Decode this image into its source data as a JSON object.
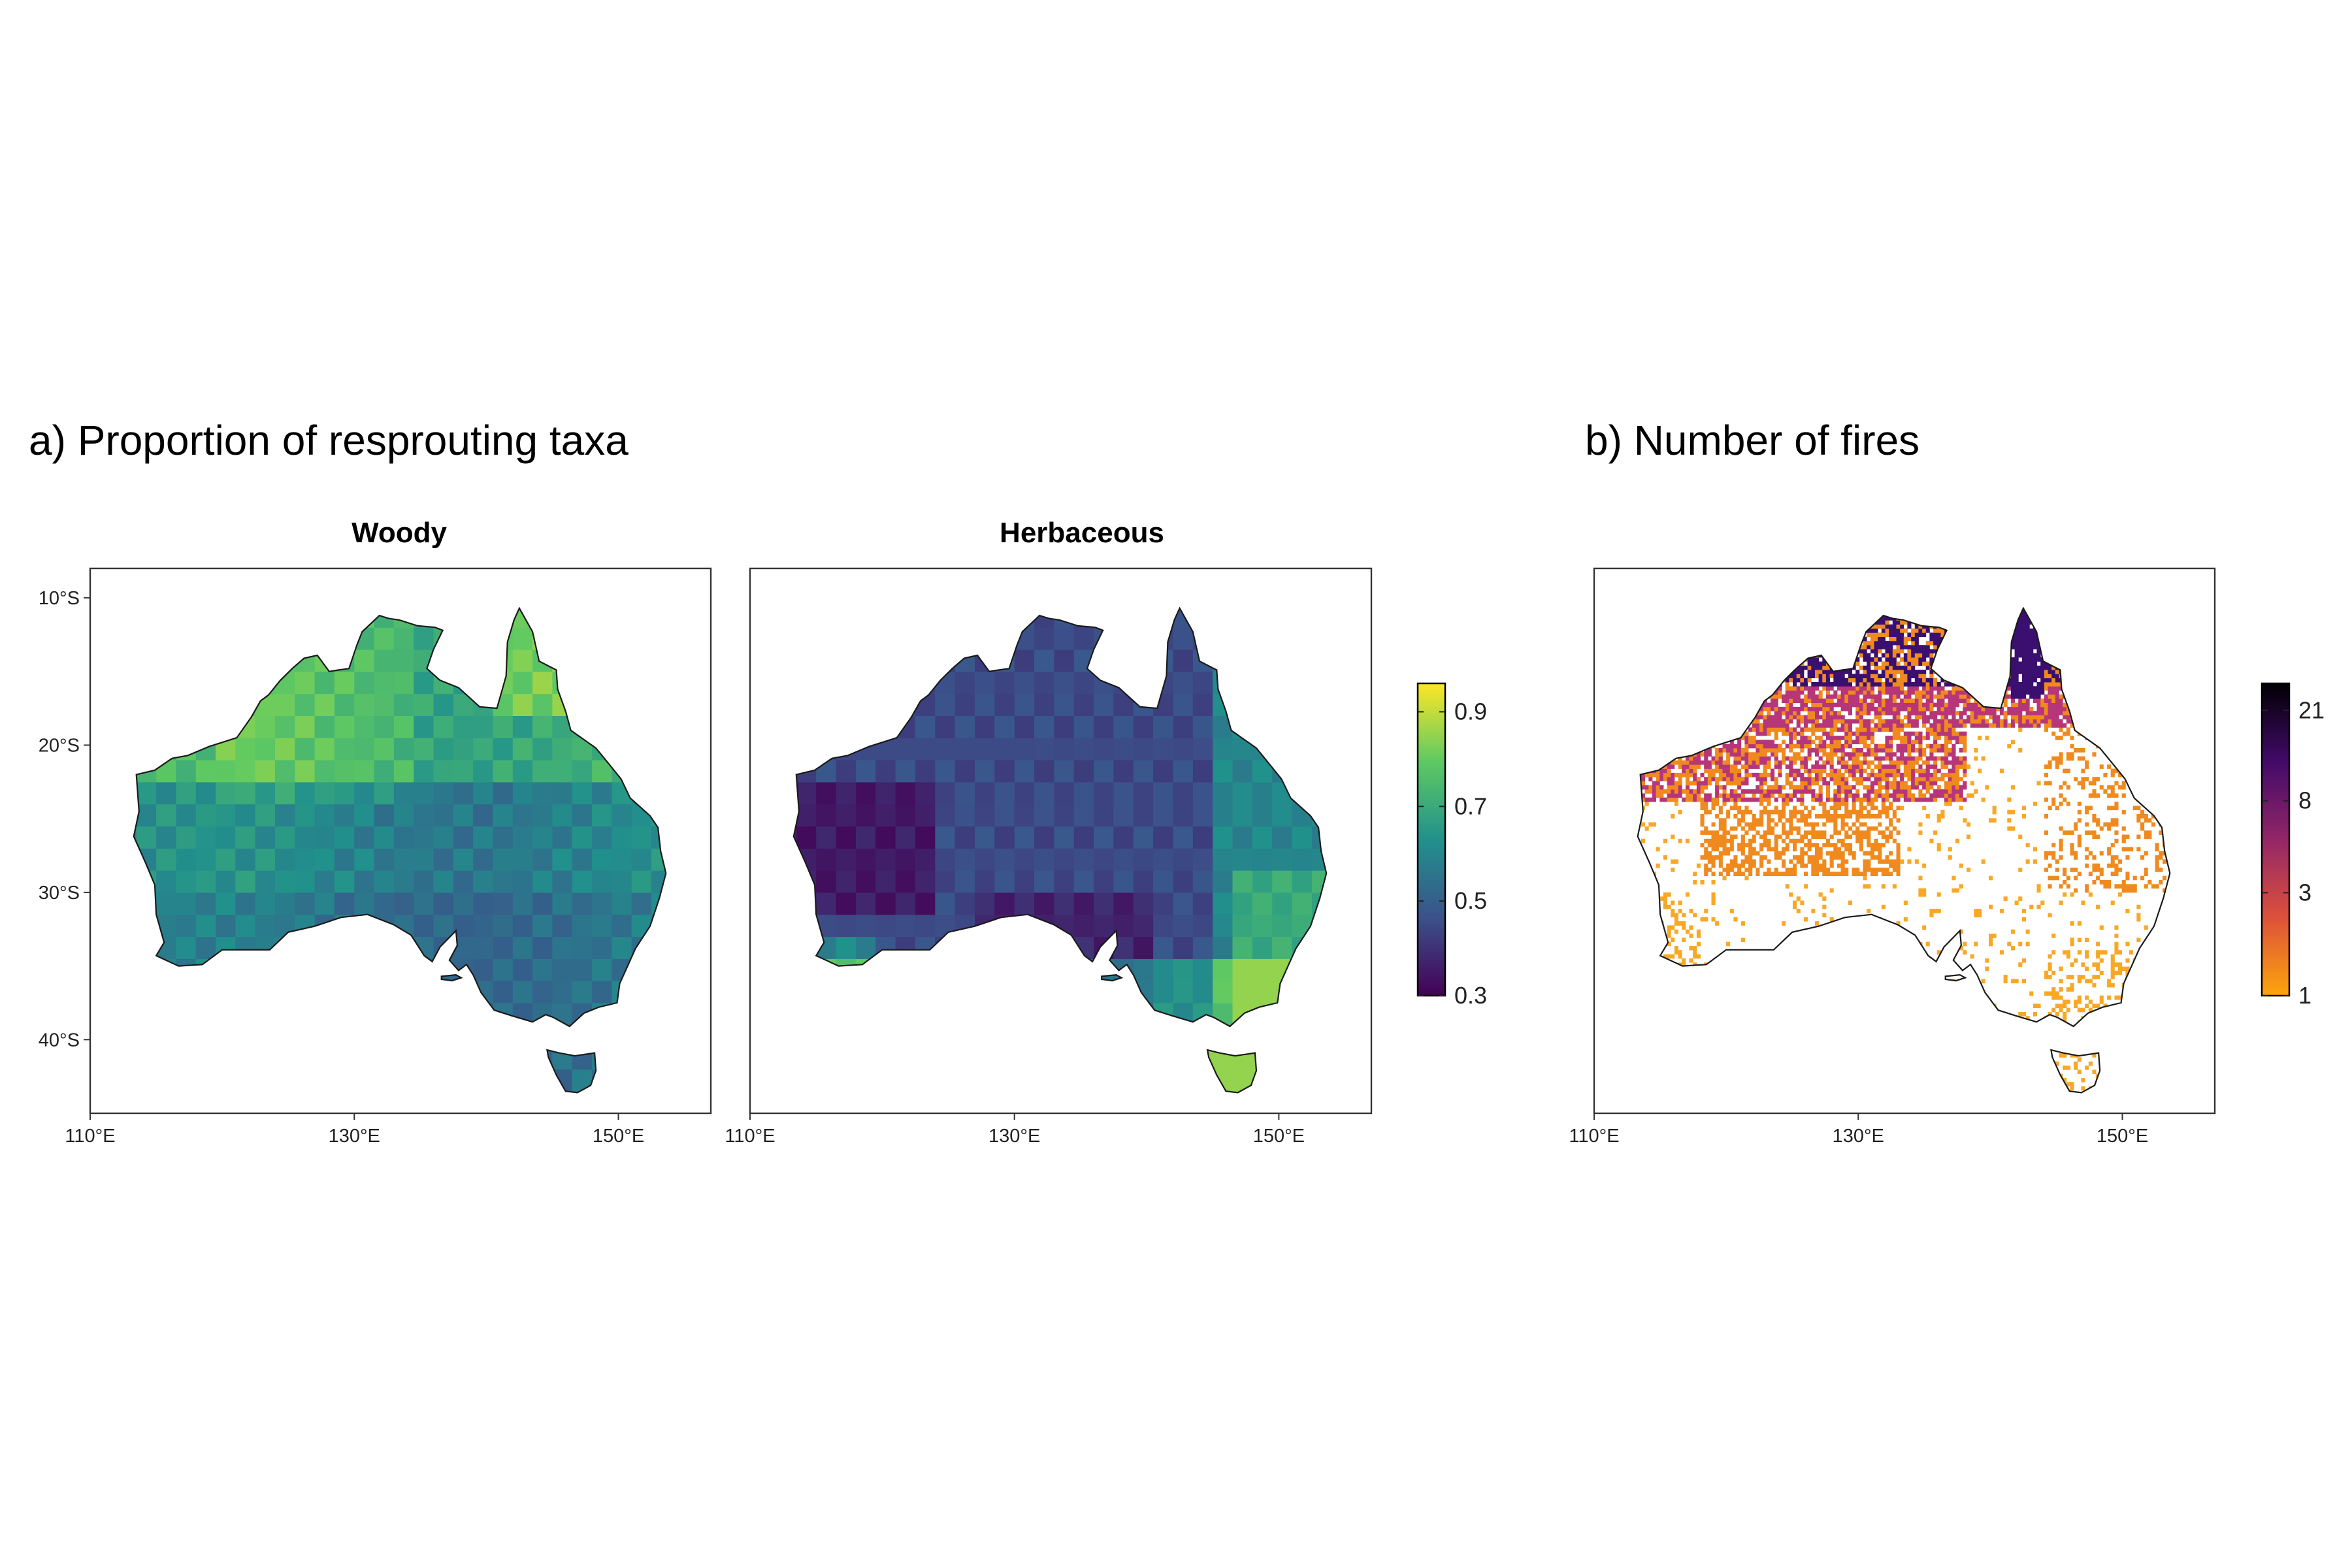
{
  "panel_a": {
    "title": "a) Proportion of resprouting taxa",
    "facets": [
      {
        "id": "woody",
        "label": "Woody",
        "gradient": [
          "#31688e",
          "#26828e",
          "#1f9e89",
          "#35b779",
          "#6ece58",
          "#b5de2b"
        ]
      },
      {
        "id": "herbaceous",
        "label": "Herbaceous",
        "gradient": [
          "#440154",
          "#46337e",
          "#365c8d",
          "#277f8e",
          "#1fa187",
          "#4ac16d"
        ]
      }
    ],
    "legend": {
      "ticks": [
        "0.9",
        "0.7",
        "0.5",
        "0.3"
      ],
      "tick_values": [
        0.9,
        0.7,
        0.5,
        0.3
      ],
      "range": [
        0.3,
        0.96
      ],
      "colors": [
        "#440154",
        "#3b528b",
        "#21918c",
        "#5ec962",
        "#fde725"
      ]
    }
  },
  "panel_b": {
    "title": "b) Number of fires",
    "legend": {
      "ticks": [
        "21",
        "8",
        "3",
        "1"
      ],
      "tick_values": [
        21,
        8,
        3,
        1
      ],
      "scale": "log",
      "range": [
        1,
        28
      ],
      "colors": [
        "#fca50a",
        "#dd513a",
        "#932667",
        "#420a68",
        "#000004"
      ]
    },
    "fire_colors": {
      "high": "#3b0f70",
      "mid": "#b63679",
      "low": "#f08a1f",
      "lowest": "#f9a825"
    }
  },
  "axes": {
    "x_ticks": [
      "110°E",
      "130°E",
      "150°E"
    ],
    "y_ticks": [
      "10°S",
      "20°S",
      "30°S",
      "40°S"
    ],
    "lon_range": [
      110,
      157
    ],
    "lat_range": [
      -45,
      -8
    ]
  },
  "colors": {
    "frame": "#333333",
    "coastline": "#1a1a1a",
    "background": "#ffffff"
  }
}
